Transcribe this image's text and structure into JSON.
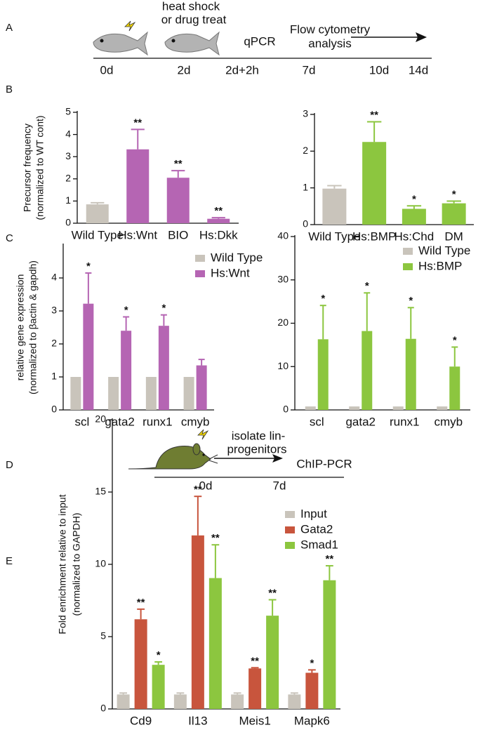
{
  "figure": {
    "panels": [
      "A",
      "B",
      "C",
      "D",
      "E"
    ]
  },
  "timeline_a": {
    "treatment": [
      "heat shock",
      "or drug treat"
    ],
    "assay": "qPCR",
    "analysis": [
      "Flow cytometry",
      "analysis"
    ],
    "days": [
      "0d",
      "2d",
      "2d+2h",
      "7d",
      "10d",
      "14d"
    ]
  },
  "timeline_d": {
    "step": [
      "isolate lin-",
      "progenitors"
    ],
    "assay": "ChIP-PCR",
    "days": [
      "0d",
      "7d"
    ]
  },
  "chart_data": [
    {
      "type": "bar",
      "y_label": [
        "Precursor frequency",
        "(normalized to WT cont)"
      ],
      "categories": [
        "Wild Type",
        "Hs:Wnt",
        "BIO",
        "Hs:Dkk"
      ],
      "values": [
        0.85,
        3.33,
        2.05,
        0.2
      ],
      "errors": [
        0.07,
        0.9,
        0.32,
        0.05
      ],
      "annotations": [
        null,
        "**",
        "**",
        "**"
      ],
      "colors": [
        "#c9c4bb",
        "#b565b3",
        "#b565b3",
        "#b565b3"
      ],
      "ylim": [
        0,
        5
      ],
      "yticks": [
        0,
        1,
        2,
        3,
        4,
        5
      ]
    },
    {
      "type": "bar",
      "categories": [
        "Wild Type",
        "Hs:BMP",
        "Hs:Chd",
        "DM"
      ],
      "values": [
        0.98,
        2.25,
        0.43,
        0.58
      ],
      "errors": [
        0.08,
        0.55,
        0.08,
        0.06
      ],
      "annotations": [
        null,
        "**",
        "*",
        "*"
      ],
      "colors": [
        "#c9c4bb",
        "#8cc63f",
        "#8cc63f",
        "#8cc63f"
      ],
      "ylim": [
        0,
        3
      ],
      "yticks": [
        0,
        1,
        2,
        3
      ]
    },
    {
      "type": "grouped_bar",
      "y_label": [
        "relative gene expression",
        "(normalized to βactin & gapdh)"
      ],
      "categories": [
        "scl",
        "gata2",
        "runx1",
        "cmyb"
      ],
      "series": [
        {
          "name": "Wild Type",
          "color": "#c9c4bb",
          "values": [
            1,
            1,
            1,
            1
          ]
        },
        {
          "name": "Hs:Wnt",
          "color": "#b565b3",
          "values": [
            3.22,
            2.4,
            2.55,
            1.35
          ],
          "errors": [
            0.93,
            0.42,
            0.33,
            0.18
          ],
          "annotations": [
            "*",
            "*",
            "*",
            null
          ]
        }
      ],
      "ylim": [
        0,
        5
      ],
      "yticks": [
        0,
        1,
        2,
        3,
        4
      ],
      "legend": "upper right"
    },
    {
      "type": "grouped_bar",
      "categories": [
        "scl",
        "gata2",
        "runx1",
        "cmyb"
      ],
      "series": [
        {
          "name": "Wild Type",
          "color": "#c9c4bb",
          "values": [
            0.8,
            0.8,
            0.8,
            0.8
          ]
        },
        {
          "name": "Hs:BMP",
          "color": "#8cc63f",
          "values": [
            16.3,
            18.2,
            16.4,
            10
          ],
          "errors": [
            7.8,
            8.8,
            7.2,
            4.5
          ],
          "annotations": [
            "*",
            "*",
            "*",
            "*"
          ]
        }
      ],
      "ylim": [
        0,
        40
      ],
      "yticks": [
        0,
        10,
        20,
        30,
        40
      ],
      "legend": "upper right"
    },
    {
      "type": "grouped_bar",
      "y_label": [
        "Fold enrichment relative to input",
        "(normalized to GAPDH)"
      ],
      "categories": [
        "Cd9",
        "Il13",
        "Meis1",
        "Mapk6"
      ],
      "series": [
        {
          "name": "Input",
          "color": "#c9c4bb",
          "values": [
            1,
            1,
            1,
            1
          ],
          "errors": [
            0.1,
            0.1,
            0.1,
            0.1
          ]
        },
        {
          "name": "Gata2",
          "color": "#c8553d",
          "values": [
            6.2,
            12,
            2.8,
            2.5
          ],
          "errors": [
            0.7,
            2.7,
            0.05,
            0.2
          ],
          "annotations": [
            "**",
            "**",
            "**",
            "*"
          ]
        },
        {
          "name": "Smad1",
          "color": "#8cc63f",
          "values": [
            3.05,
            9.05,
            6.45,
            8.9
          ],
          "errors": [
            0.2,
            2.3,
            1.1,
            1.0
          ],
          "annotations": [
            "*",
            "**",
            "**",
            "**"
          ]
        }
      ],
      "ylim": [
        0,
        20
      ],
      "yticks": [
        0,
        5,
        10,
        15,
        20
      ],
      "legend": "upper right"
    }
  ]
}
